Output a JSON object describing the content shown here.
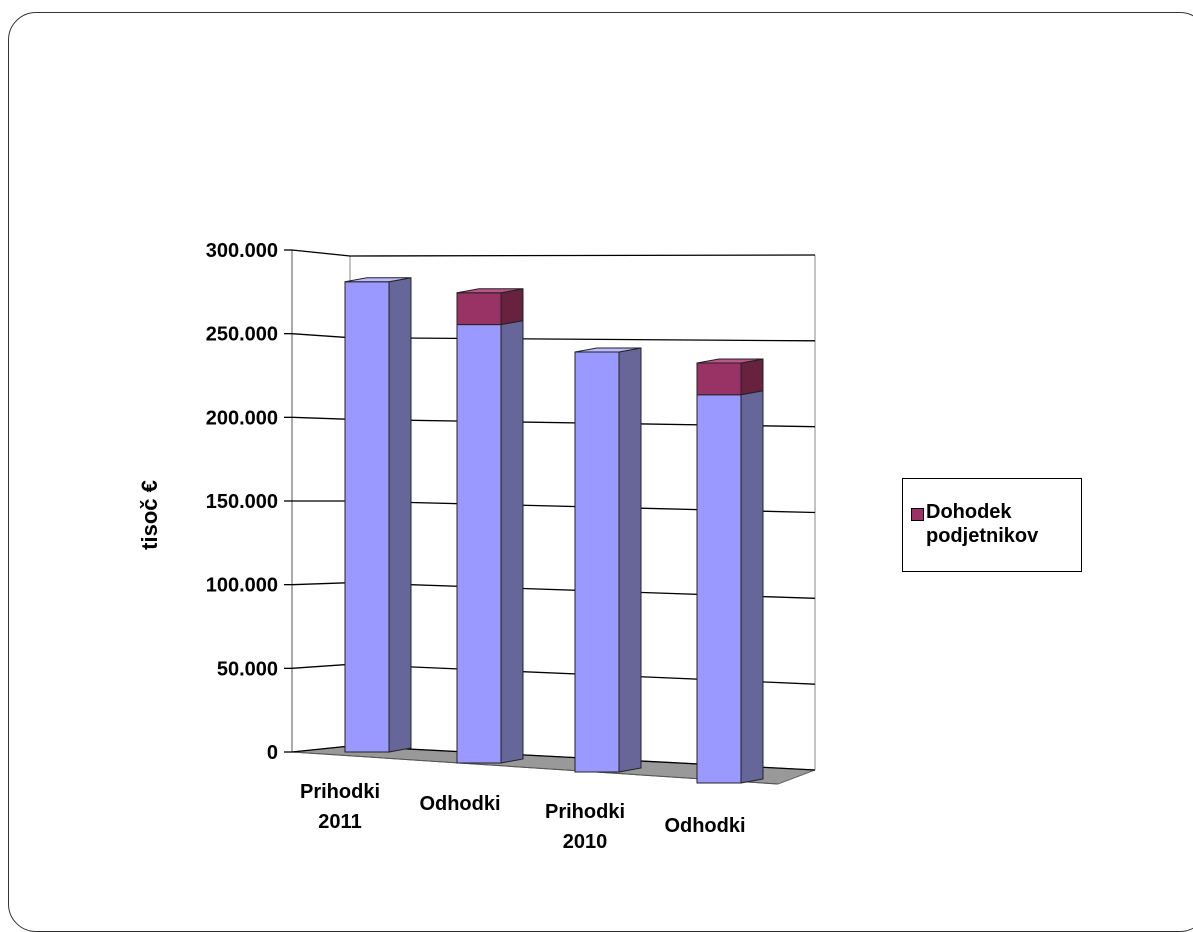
{
  "chart_data": {
    "type": "bar",
    "stacked": true,
    "three_d": true,
    "categories": [
      "Prihodki\n2011",
      "Odhodki",
      "Prihodki\n2010",
      "Odhodki"
    ],
    "series": [
      {
        "values": [
          281000,
          262000,
          251000,
          232000
        ],
        "color": "#9999ff"
      },
      {
        "name": "Dohodek podjetnikov",
        "values": [
          0,
          19000,
          0,
          19000
        ],
        "color": "#993366"
      }
    ],
    "ylabel": "tisoč €",
    "ylim": [
      0,
      300000
    ],
    "yticks": [
      "0",
      "50.000",
      "100.000",
      "150.000",
      "200.000",
      "250.000",
      "300.000"
    ],
    "grid": true,
    "legend_position": "right"
  }
}
